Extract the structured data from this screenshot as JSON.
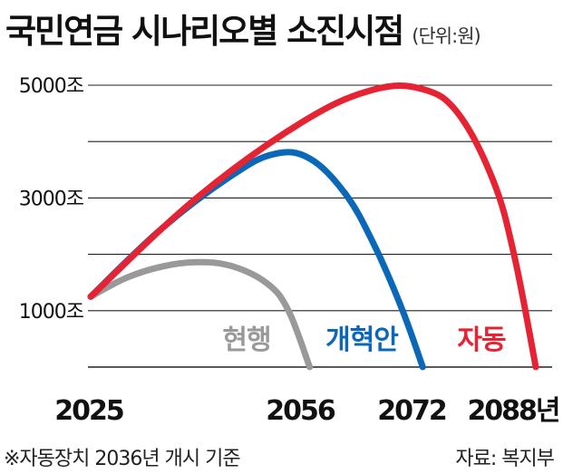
{
  "header": {
    "title": "국민연금 시나리오별 소진시점",
    "unit": "(단위:원)"
  },
  "footer": {
    "note": "※자동장치 2036년 개시 기준",
    "source": "자료: 복지부"
  },
  "chart_data": {
    "type": "line",
    "title": "국민연금 시나리오별 소진시점",
    "ylim": [
      0,
      5000
    ],
    "y_ticks": [
      {
        "value": 1000,
        "label": "1000조"
      },
      {
        "value": 3000,
        "label": "3000조"
      },
      {
        "value": 5000,
        "label": "5000조"
      }
    ],
    "x_ticks": [
      {
        "value": 2025,
        "label": "2025"
      },
      {
        "value": 2056,
        "label": "2056"
      },
      {
        "value": 2072,
        "label": "2072"
      },
      {
        "value": 2088,
        "label": "2088년"
      }
    ],
    "grid": true,
    "series": [
      {
        "name": "현행",
        "color": "#999999",
        "x": [
          2025,
          2030,
          2035,
          2040,
          2045,
          2050,
          2053,
          2056
        ],
        "y": [
          1250,
          1580,
          1780,
          1860,
          1790,
          1480,
          1000,
          0
        ]
      },
      {
        "name": "개혁안",
        "color": "#0b68b8",
        "x": [
          2025,
          2035,
          2045,
          2051,
          2056,
          2061,
          2065,
          2069,
          2072
        ],
        "y": [
          1250,
          2450,
          3400,
          3780,
          3700,
          3080,
          2200,
          1050,
          0
        ]
      },
      {
        "name": "자동",
        "color": "#e62333",
        "x": [
          2025,
          2040,
          2055,
          2065,
          2072,
          2077,
          2082,
          2085,
          2088
        ],
        "y": [
          1250,
          3000,
          4350,
          4920,
          4930,
          4500,
          3300,
          1950,
          0
        ]
      }
    ]
  }
}
